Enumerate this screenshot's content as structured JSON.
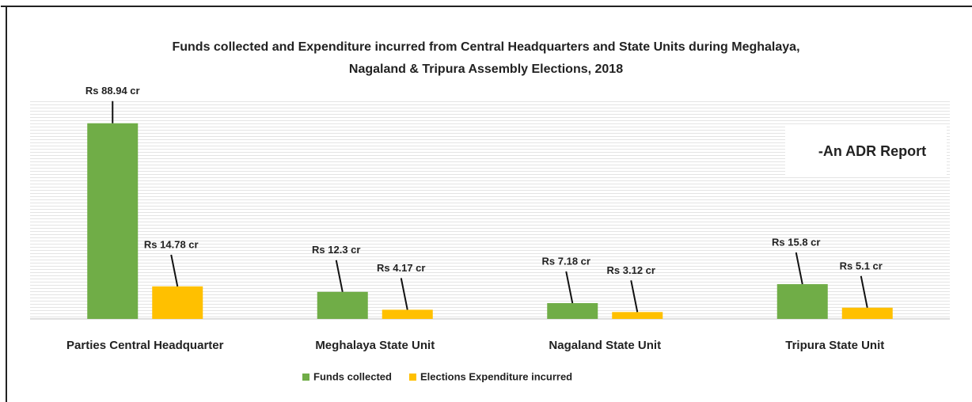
{
  "chart_data": {
    "type": "bar",
    "title": [
      "Funds collected and Expenditure incurred from Central Headquarters and State Units during Meghalaya,",
      "Nagaland & Tripura Assembly Elections, 2018"
    ],
    "annotation": "-An ADR Report",
    "categories": [
      "Parties Central Headquarter",
      "Meghalaya State Unit",
      "Nagaland State Unit",
      "Tripura State Unit"
    ],
    "series": [
      {
        "name": "Funds collected",
        "color": "#70ad47",
        "values": [
          88.94,
          12.3,
          7.18,
          15.8
        ],
        "value_labels": [
          "Rs 88.94 cr",
          "Rs 12.3 cr",
          "Rs 7.18 cr",
          "Rs 15.8 cr"
        ]
      },
      {
        "name": "Elections Expenditure incurred",
        "color": "#ffc000",
        "values": [
          14.78,
          4.17,
          3.12,
          5.1
        ],
        "value_labels": [
          "Rs 14.78 cr",
          "Rs 4.17 cr",
          "Rs 3.12 cr",
          "Rs 5.1 cr"
        ]
      }
    ],
    "ylim": [
      0,
      100
    ],
    "legend": "bottom"
  }
}
